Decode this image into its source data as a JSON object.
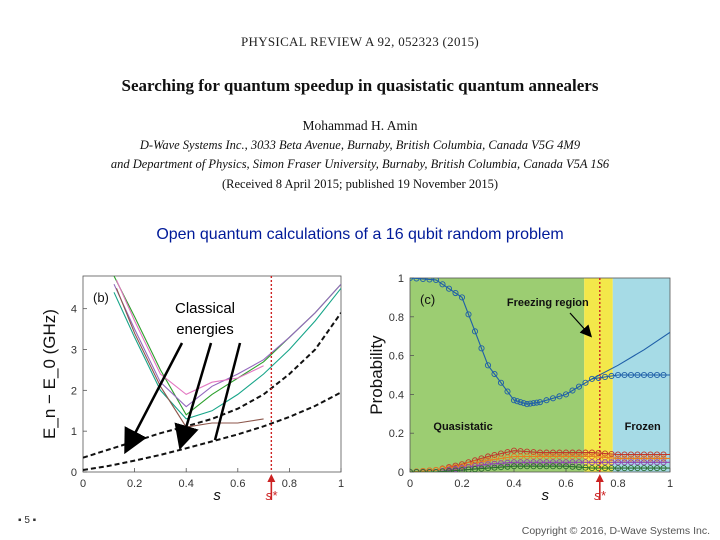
{
  "header": {
    "journal_ref": "PHYSICAL REVIEW A 92, 052323 (2015)",
    "title": "Searching for quantum speedup in quasistatic quantum annealers",
    "author": "Mohammad H. Amin",
    "affiliation_1": "D-Wave Systems Inc., 3033 Beta Avenue, Burnaby, British Columbia, Canada V5G 4M9",
    "affiliation_2": "and Department of Physics, Simon Fraser University, Burnaby, British Columbia, Canada V5A 1S6",
    "received": "(Received 8 April 2015; published 19 November 2015)"
  },
  "slide": {
    "subtitle": "Open quantum calculations of a 16 qubit random problem",
    "annotation": "Classical energies",
    "page_number": "5",
    "copyright": "Copyright © 2016, D-Wave Systems Inc."
  },
  "colors": {
    "subtitle": "#001a99",
    "quasistatic_region": "#9ccd72",
    "freezing_region": "#f3e84a",
    "frozen_region": "#a6dbe6",
    "marker_line": "#cc2222"
  },
  "chart_data": [
    {
      "type": "line",
      "panel_label": "(b)",
      "xlabel": "s",
      "ylabel": "E_n − E_0 (GHz)",
      "xlim": [
        0,
        1
      ],
      "ylim": [
        0,
        4.8
      ],
      "xticks": [
        "0",
        "0.2",
        "0.4",
        "0.6",
        "0.8",
        "1"
      ],
      "yticks": [
        "0",
        "1",
        "2",
        "3",
        "4"
      ],
      "marker_label": "s*",
      "marker_x": 0.73,
      "series": [
        {
          "x": [
            0.0,
            0.1,
            0.2,
            0.3,
            0.4,
            0.5,
            0.6,
            0.7,
            0.8,
            0.9,
            1.0
          ],
          "values": [
            0.35,
            0.55,
            0.75,
            0.95,
            1.12,
            1.3,
            1.55,
            1.9,
            2.4,
            3.0,
            3.9
          ],
          "style": "dashed"
        },
        {
          "x": [
            0.0,
            0.1,
            0.2,
            0.3,
            0.4,
            0.5,
            0.6,
            0.7,
            0.8,
            0.9,
            1.0
          ],
          "values": [
            0.05,
            0.15,
            0.28,
            0.42,
            0.58,
            0.75,
            0.92,
            1.12,
            1.35,
            1.62,
            1.95
          ],
          "style": "dashed"
        },
        {
          "x": [
            0.12,
            0.2,
            0.3,
            0.4,
            0.5,
            0.6,
            0.7,
            0.8,
            0.9,
            1.0
          ],
          "values": [
            4.8,
            3.8,
            2.5,
            1.4,
            1.9,
            2.3,
            2.7,
            3.3,
            3.9,
            4.6
          ]
        },
        {
          "x": [
            0.12,
            0.2,
            0.3,
            0.4,
            0.5,
            0.6,
            0.7,
            0.8,
            0.9,
            1.0
          ],
          "values": [
            4.6,
            3.5,
            2.2,
            1.6,
            2.1,
            2.4,
            2.75,
            3.3,
            3.9,
            4.6
          ]
        },
        {
          "x": [
            0.12,
            0.2,
            0.3,
            0.4,
            0.5,
            0.6,
            0.7,
            0.8,
            0.9,
            1.0
          ],
          "values": [
            4.4,
            3.3,
            2.0,
            1.3,
            1.5,
            1.9,
            2.4,
            3.0,
            3.7,
            4.5
          ]
        },
        {
          "x": [
            0.13,
            0.2,
            0.3,
            0.4,
            0.5,
            0.6,
            0.7
          ],
          "values": [
            4.7,
            3.7,
            2.4,
            1.9,
            2.2,
            2.3,
            2.6
          ]
        },
        {
          "x": [
            0.13,
            0.2,
            0.3,
            0.4,
            0.5,
            0.6,
            0.7
          ],
          "values": [
            4.5,
            3.4,
            2.1,
            1.1,
            1.2,
            1.2,
            1.3
          ]
        }
      ]
    },
    {
      "type": "line",
      "panel_label": "(c)",
      "xlabel": "s",
      "ylabel": "Probability",
      "xlim": [
        0,
        1
      ],
      "ylim": [
        0,
        1
      ],
      "xticks": [
        "0",
        "0.2",
        "0.4",
        "0.6",
        "0.8",
        "1"
      ],
      "yticks": [
        "0",
        "0.2",
        "0.4",
        "0.6",
        "0.8",
        "1"
      ],
      "marker_label": "s*",
      "marker_x": 0.73,
      "regions": [
        {
          "label": "Quasistatic",
          "from": 0.0,
          "to": 0.67
        },
        {
          "label": "Freezing region",
          "from": 0.67,
          "to": 0.78
        },
        {
          "label": "Frozen",
          "from": 0.78,
          "to": 1.0
        }
      ],
      "series": [
        {
          "x": [
            0.0,
            0.1,
            0.2,
            0.3,
            0.4,
            0.45,
            0.5,
            0.6,
            0.7,
            0.8,
            0.9,
            1.0
          ],
          "values": [
            1.0,
            0.99,
            0.9,
            0.55,
            0.37,
            0.35,
            0.36,
            0.4,
            0.48,
            0.5,
            0.5,
            0.5
          ]
        },
        {
          "x": [
            0.7,
            0.8,
            0.9,
            1.0
          ],
          "values": [
            0.48,
            0.55,
            0.63,
            0.72
          ],
          "style": "solid"
        },
        {
          "x": [
            0.0,
            0.1,
            0.2,
            0.3,
            0.4,
            0.5,
            0.6,
            0.7,
            0.8,
            0.9,
            1.0
          ],
          "values": [
            0.0,
            0.01,
            0.04,
            0.08,
            0.11,
            0.1,
            0.1,
            0.1,
            0.09,
            0.09,
            0.09
          ]
        },
        {
          "x": [
            0.0,
            0.1,
            0.2,
            0.3,
            0.4,
            0.5,
            0.6,
            0.7,
            0.8,
            0.9,
            1.0
          ],
          "values": [
            0.0,
            0.01,
            0.03,
            0.06,
            0.08,
            0.08,
            0.08,
            0.08,
            0.07,
            0.07,
            0.07
          ]
        },
        {
          "x": [
            0.0,
            0.1,
            0.2,
            0.3,
            0.4,
            0.5,
            0.6,
            0.7,
            0.8,
            0.9,
            1.0
          ],
          "values": [
            0.0,
            0.0,
            0.02,
            0.04,
            0.05,
            0.05,
            0.05,
            0.05,
            0.05,
            0.05,
            0.05
          ]
        },
        {
          "x": [
            0.0,
            0.1,
            0.2,
            0.3,
            0.4,
            0.5,
            0.6,
            0.7,
            0.8,
            0.9,
            1.0
          ],
          "values": [
            0.0,
            0.0,
            0.01,
            0.02,
            0.03,
            0.03,
            0.03,
            0.02,
            0.02,
            0.02,
            0.02
          ]
        }
      ]
    }
  ]
}
